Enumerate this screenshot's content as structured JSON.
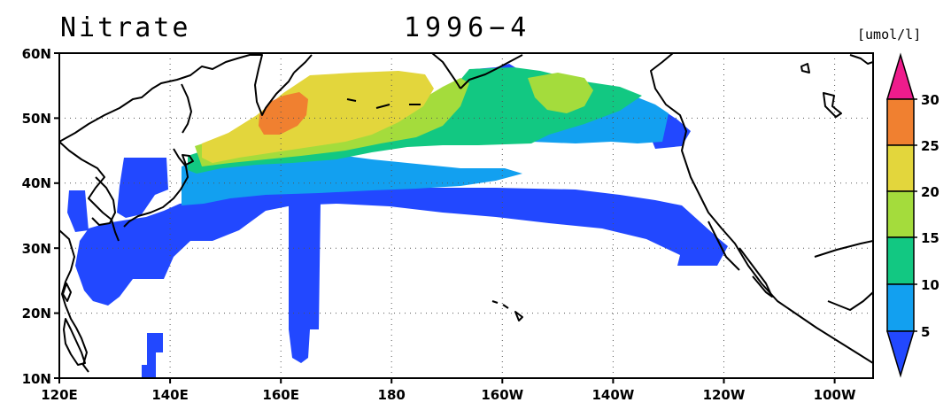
{
  "title": "Nitrate",
  "date": "1996-4",
  "date_display": "1996−4",
  "units": "[umol/l]",
  "x_ticks": [
    "120E",
    "140E",
    "160E",
    "180",
    "160W",
    "140W",
    "120W",
    "100W"
  ],
  "y_ticks": [
    "60N",
    "50N",
    "40N",
    "30N",
    "20N",
    "10N"
  ],
  "colorbar": {
    "labels": [
      "30",
      "25",
      "20",
      "15",
      "10",
      "5"
    ],
    "colors": [
      "#ee1c8c",
      "#f08030",
      "#e3d63c",
      "#a4dc3c",
      "#12c882",
      "#12a0f0",
      "#2248ff"
    ]
  },
  "chart_data": {
    "type": "heatmap",
    "title": "Nitrate",
    "subtitle": "1996-4",
    "units": "[umol/l]",
    "xlim": [
      "120E",
      "90W"
    ],
    "ylim": [
      "10N",
      "60N"
    ],
    "grid": true,
    "levels": [
      5,
      10,
      15,
      20,
      25,
      30
    ],
    "extend": "both",
    "legend_placement": "right"
  }
}
